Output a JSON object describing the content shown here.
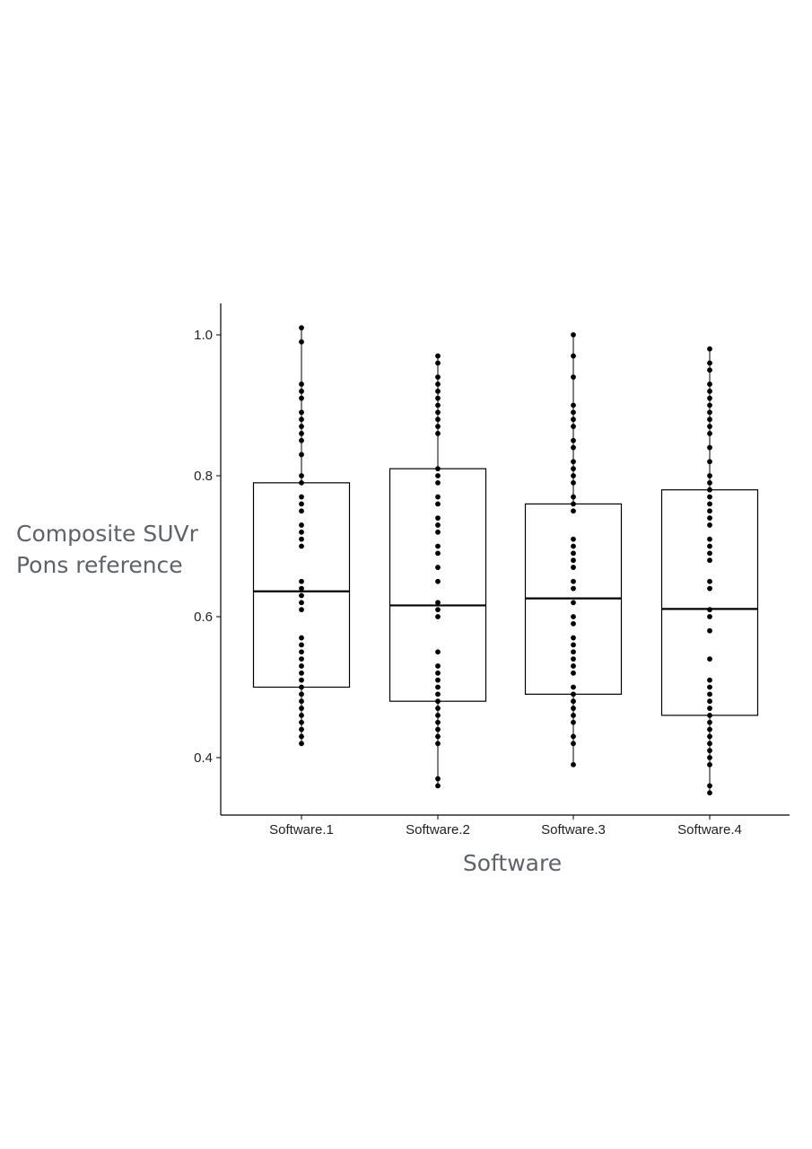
{
  "chart_data": {
    "type": "boxplot",
    "title": "",
    "xlabel": "Software",
    "ylabel_lines": [
      "Composite SUVr",
      "Pons reference"
    ],
    "categories": [
      "Software.1",
      "Software.2",
      "Software.3",
      "Software.4"
    ],
    "ylim": [
      0.32,
      1.045
    ],
    "yticks": [
      0.4,
      0.6,
      0.8,
      1.0
    ],
    "ytick_labels": [
      "0.4",
      "0.6",
      "0.8",
      "1.0"
    ],
    "grid": false,
    "legend": "none",
    "series": [
      {
        "boxes": [
          {
            "q1": 0.5,
            "median": 0.636,
            "q3": 0.79,
            "whisker_low": 0.42,
            "whisker_high": 1.01
          },
          {
            "q1": 0.48,
            "median": 0.616,
            "q3": 0.81,
            "whisker_low": 0.36,
            "whisker_high": 0.97
          },
          {
            "q1": 0.49,
            "median": 0.626,
            "q3": 0.76,
            "whisker_low": 0.39,
            "whisker_high": 1.0
          },
          {
            "q1": 0.46,
            "median": 0.611,
            "q3": 0.78,
            "whisker_low": 0.35,
            "whisker_high": 0.98
          }
        ],
        "points": [
          [
            0.42,
            0.43,
            0.44,
            0.45,
            0.46,
            0.47,
            0.48,
            0.49,
            0.5,
            0.51,
            0.52,
            0.53,
            0.54,
            0.55,
            0.56,
            0.57,
            0.61,
            0.62,
            0.63,
            0.64,
            0.65,
            0.7,
            0.71,
            0.72,
            0.73,
            0.75,
            0.76,
            0.77,
            0.79,
            0.8,
            0.83,
            0.85,
            0.86,
            0.87,
            0.88,
            0.89,
            0.91,
            0.92,
            0.93,
            0.99,
            1.01
          ],
          [
            0.36,
            0.37,
            0.42,
            0.43,
            0.44,
            0.45,
            0.46,
            0.47,
            0.48,
            0.49,
            0.5,
            0.51,
            0.52,
            0.53,
            0.55,
            0.6,
            0.61,
            0.62,
            0.65,
            0.67,
            0.69,
            0.7,
            0.72,
            0.73,
            0.74,
            0.76,
            0.77,
            0.79,
            0.8,
            0.81,
            0.86,
            0.87,
            0.88,
            0.89,
            0.9,
            0.91,
            0.92,
            0.93,
            0.94,
            0.96,
            0.97
          ],
          [
            0.39,
            0.42,
            0.43,
            0.45,
            0.46,
            0.47,
            0.48,
            0.49,
            0.5,
            0.52,
            0.53,
            0.54,
            0.55,
            0.56,
            0.57,
            0.59,
            0.6,
            0.62,
            0.64,
            0.65,
            0.67,
            0.68,
            0.69,
            0.7,
            0.71,
            0.75,
            0.76,
            0.77,
            0.79,
            0.8,
            0.81,
            0.82,
            0.84,
            0.85,
            0.87,
            0.88,
            0.89,
            0.9,
            0.94,
            0.97,
            1.0
          ],
          [
            0.35,
            0.36,
            0.39,
            0.4,
            0.41,
            0.42,
            0.43,
            0.44,
            0.45,
            0.46,
            0.47,
            0.48,
            0.49,
            0.5,
            0.51,
            0.54,
            0.58,
            0.6,
            0.61,
            0.64,
            0.65,
            0.68,
            0.69,
            0.7,
            0.71,
            0.73,
            0.74,
            0.75,
            0.76,
            0.77,
            0.78,
            0.79,
            0.8,
            0.82,
            0.84,
            0.86,
            0.87,
            0.88,
            0.89,
            0.9,
            0.91,
            0.92,
            0.93,
            0.95,
            0.96,
            0.98
          ]
        ]
      }
    ]
  }
}
